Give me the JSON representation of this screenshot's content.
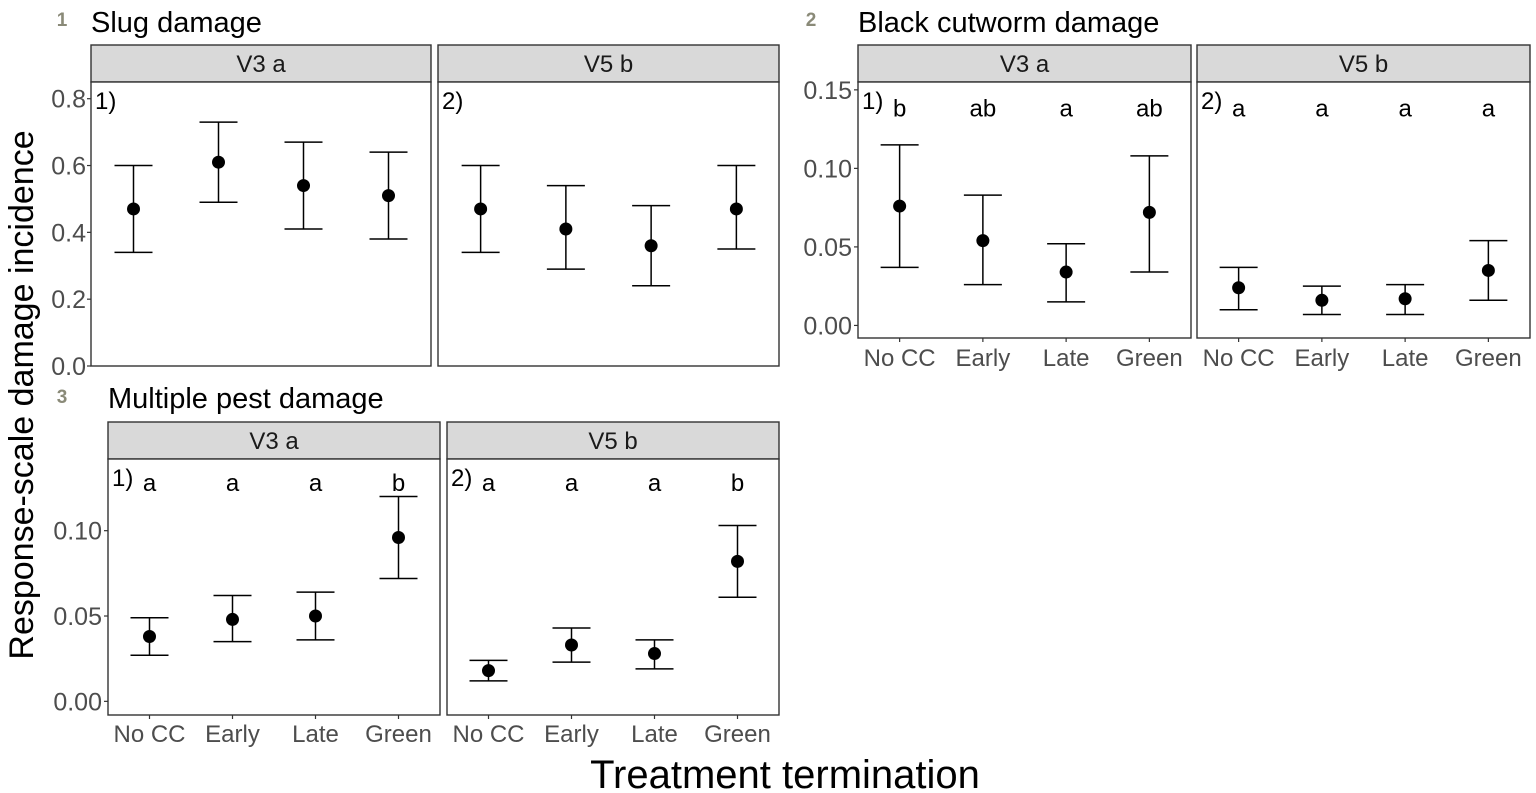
{
  "y_axis_label": "Response-scale damage incidence",
  "x_axis_label": "Treatment termination",
  "chart_data": [
    {
      "type": "scatter",
      "panel_number": "1",
      "title": "Slug damage",
      "categories": [
        "No CC",
        "Early",
        "Late",
        "Green"
      ],
      "ylim": [
        0,
        0.85
      ],
      "y_ticks": [
        "0.0",
        "0.2",
        "0.4",
        "0.6",
        "0.8"
      ],
      "y_tick_values": [
        0,
        0.2,
        0.4,
        0.6,
        0.8
      ],
      "show_x_ticks": false,
      "facets": [
        {
          "strip": "V3  a",
          "tag": "1)",
          "letters": [],
          "values": [
            0.47,
            0.61,
            0.54,
            0.51
          ],
          "lower": [
            0.34,
            0.49,
            0.41,
            0.38
          ],
          "upper": [
            0.6,
            0.73,
            0.67,
            0.64
          ]
        },
        {
          "strip": "V5  b",
          "tag": "2)",
          "letters": [],
          "values": [
            0.47,
            0.41,
            0.36,
            0.47
          ],
          "lower": [
            0.34,
            0.29,
            0.24,
            0.35
          ],
          "upper": [
            0.6,
            0.54,
            0.48,
            0.6
          ]
        }
      ]
    },
    {
      "type": "scatter",
      "panel_number": "2",
      "title": "Black cutworm damage",
      "categories": [
        "No CC",
        "Early",
        "Late",
        "Green"
      ],
      "ylim": [
        -0.008,
        0.155
      ],
      "y_ticks": [
        "0.00",
        "0.05",
        "0.10",
        "0.15"
      ],
      "y_tick_values": [
        0,
        0.05,
        0.1,
        0.15
      ],
      "show_x_ticks": true,
      "letter_value": 0.138,
      "facets": [
        {
          "strip": "V3  a",
          "tag": "1)",
          "letters": [
            "b",
            "ab",
            "a",
            "ab"
          ],
          "values": [
            0.076,
            0.054,
            0.034,
            0.072
          ],
          "lower": [
            0.037,
            0.026,
            0.015,
            0.034
          ],
          "upper": [
            0.115,
            0.083,
            0.052,
            0.108
          ]
        },
        {
          "strip": "V5  b",
          "tag": "2)",
          "letters": [
            "a",
            "a",
            "a",
            "a"
          ],
          "values": [
            0.024,
            0.016,
            0.017,
            0.035
          ],
          "lower": [
            0.01,
            0.007,
            0.007,
            0.016
          ],
          "upper": [
            0.037,
            0.025,
            0.026,
            0.054
          ]
        }
      ]
    },
    {
      "type": "scatter",
      "panel_number": "3",
      "title": "Multiple pest damage",
      "categories": [
        "No CC",
        "Early",
        "Late",
        "Green"
      ],
      "ylim": [
        -0.008,
        0.142
      ],
      "y_ticks": [
        "0.00",
        "0.05",
        "0.10"
      ],
      "y_tick_values": [
        0,
        0.05,
        0.1
      ],
      "show_x_ticks": true,
      "letter_value": 0.128,
      "facets": [
        {
          "strip": "V3  a",
          "tag": "1)",
          "letters": [
            "a",
            "a",
            "a",
            "b"
          ],
          "values": [
            0.038,
            0.048,
            0.05,
            0.096
          ],
          "lower": [
            0.027,
            0.035,
            0.036,
            0.072
          ],
          "upper": [
            0.049,
            0.062,
            0.064,
            0.12
          ]
        },
        {
          "strip": "V5  b",
          "tag": "2)",
          "letters": [
            "a",
            "a",
            "a",
            "b"
          ],
          "values": [
            0.018,
            0.033,
            0.028,
            0.082
          ],
          "lower": [
            0.012,
            0.023,
            0.019,
            0.061
          ],
          "upper": [
            0.024,
            0.043,
            0.036,
            0.103
          ]
        }
      ]
    }
  ]
}
